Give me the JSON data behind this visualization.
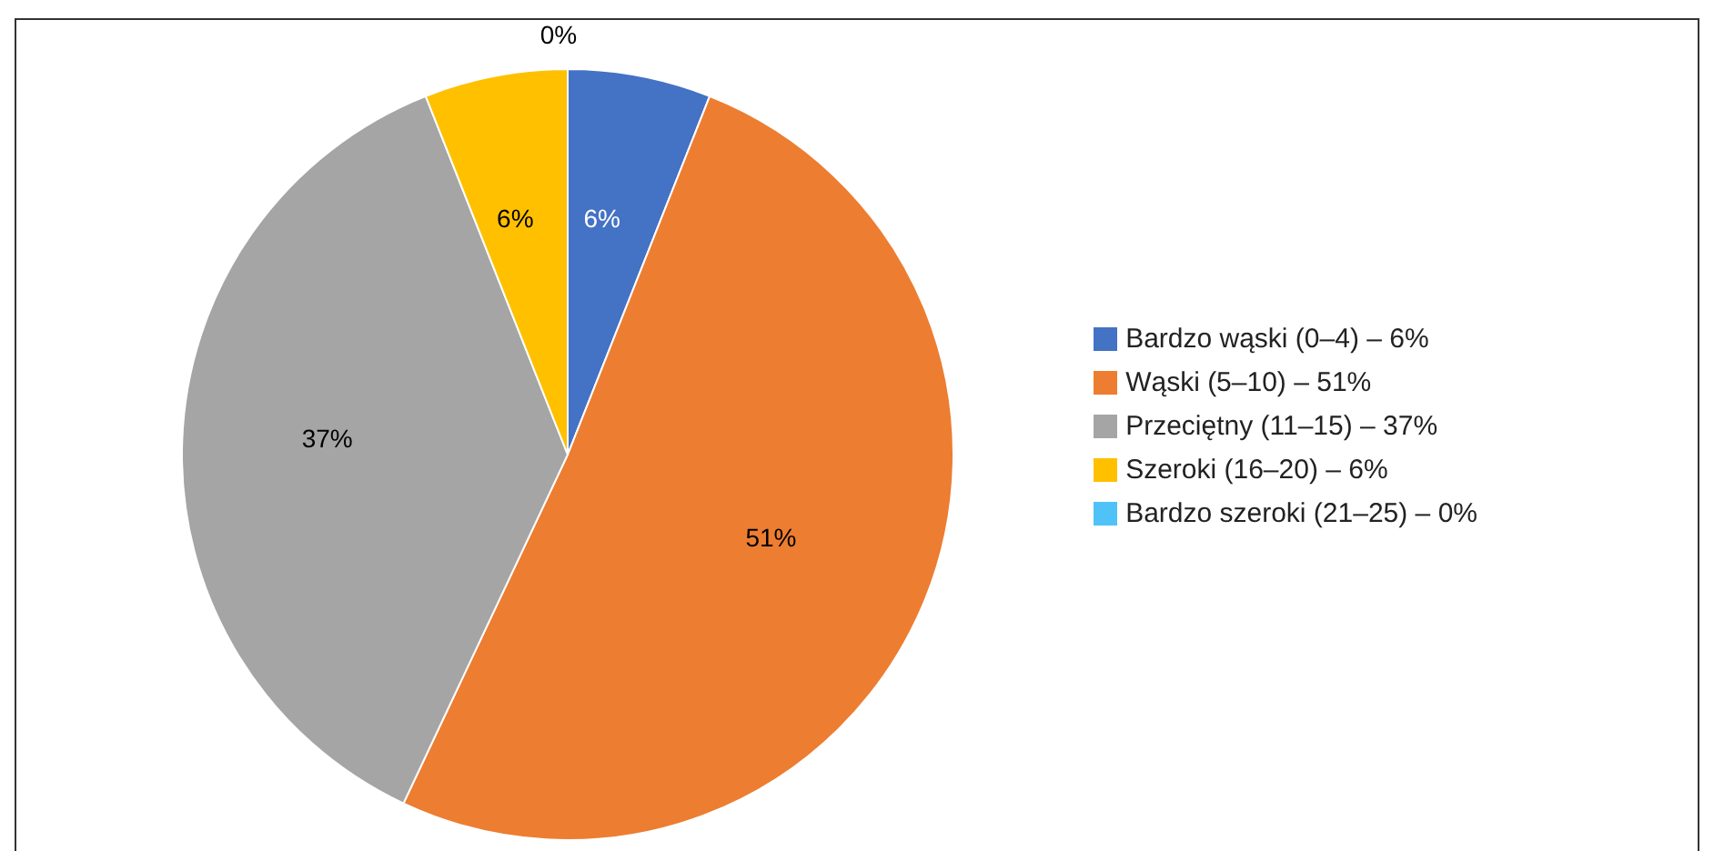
{
  "chart_data": {
    "type": "pie",
    "categories": [
      "Bardzo wąski (0–4) – 6%",
      "Wąski (5–10) – 51%",
      "Przeciętny (11–15) – 37%",
      "Szeroki (16–20) – 6%",
      "Bardzo szeroki (21–25) – 0%"
    ],
    "values": [
      6,
      51,
      37,
      6,
      0
    ],
    "colors": [
      "#4472c4",
      "#ed7d31",
      "#a5a5a5",
      "#ffc000",
      "#4fc3f7"
    ],
    "value_labels": [
      "6%",
      "51%",
      "37%",
      "6%",
      "0%"
    ],
    "legend": "right"
  }
}
